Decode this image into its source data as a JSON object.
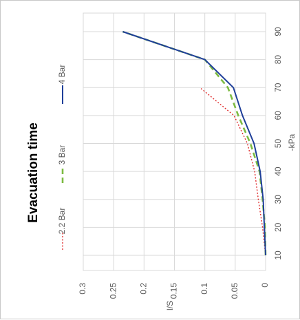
{
  "chart_data": {
    "type": "line",
    "title": "Evacuation time",
    "xlabel": "-kPa",
    "ylabel": "l/S",
    "xlim": [
      10,
      90
    ],
    "ylim": [
      0,
      0.3
    ],
    "x_ticks": [
      "10",
      "20",
      "30",
      "40",
      "50",
      "60",
      "70",
      "80",
      "90"
    ],
    "y_ticks": [
      "0",
      "0.05",
      "0.1",
      "0.15",
      "0.2",
      "0.25",
      "0.3"
    ],
    "grid": true,
    "legend_position": "top",
    "orientation": "rotated 90 degrees counter-clockwise",
    "series": [
      {
        "name": "2.2 Bar",
        "color": "#e03030",
        "style": "dotted",
        "points": [
          [
            10,
            0
          ],
          [
            20,
            0.005
          ],
          [
            30,
            0.012
          ],
          [
            40,
            0.018
          ],
          [
            50,
            0.03
          ],
          [
            60,
            0.052
          ],
          [
            70,
            0.108
          ]
        ]
      },
      {
        "name": "3 Bar",
        "color": "#7dbb42",
        "style": "dashed",
        "points": [
          [
            10,
            0
          ],
          [
            20,
            0.001
          ],
          [
            30,
            0.005
          ],
          [
            40,
            0.01
          ],
          [
            50,
            0.025
          ],
          [
            60,
            0.045
          ],
          [
            70,
            0.062
          ],
          [
            80,
            0.1
          ],
          [
            90,
            0.235
          ]
        ]
      },
      {
        "name": "4 Bar",
        "color": "#1f3f99",
        "style": "solid",
        "points": [
          [
            10,
            0
          ],
          [
            20,
            0.002
          ],
          [
            30,
            0.004
          ],
          [
            40,
            0.009
          ],
          [
            50,
            0.019
          ],
          [
            60,
            0.038
          ],
          [
            70,
            0.053
          ],
          [
            80,
            0.1
          ],
          [
            90,
            0.235
          ]
        ]
      }
    ]
  }
}
